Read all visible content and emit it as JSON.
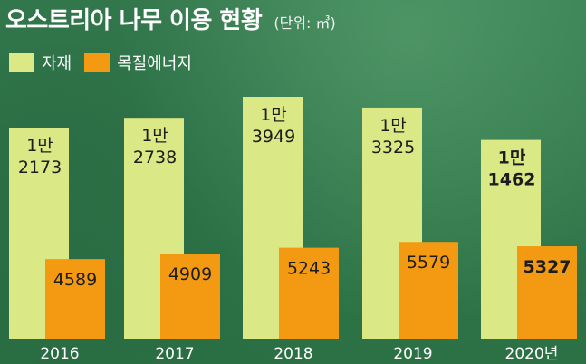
{
  "header": {
    "title": "오스트리아 나무 이용 현황",
    "subtitle": "(단위: ㎥)"
  },
  "legend": {
    "items": [
      {
        "label": "자재",
        "color": "#dbe886"
      },
      {
        "label": "목질에너지",
        "color": "#f39a12"
      }
    ]
  },
  "chart_data": {
    "type": "bar",
    "title": "오스트리아 나무 이용 현황",
    "unit": "(단위: ㎥)",
    "categories": [
      "2016",
      "2017",
      "2018",
      "2019",
      "2020년"
    ],
    "series": [
      {
        "name": "자재",
        "color": "#dbe886",
        "values": [
          12173,
          12738,
          13949,
          13325,
          11462
        ],
        "label_lines": [
          [
            "1만",
            "2173"
          ],
          [
            "1만",
            "2738"
          ],
          [
            "1만",
            "3949"
          ],
          [
            "1만",
            "3325"
          ],
          [
            "1만",
            "1462"
          ]
        ]
      },
      {
        "name": "목질에너지",
        "color": "#f39a12",
        "values": [
          4589,
          4909,
          5243,
          5579,
          5327
        ],
        "label_lines": [
          [
            "4589"
          ],
          [
            "4909"
          ],
          [
            "5243"
          ],
          [
            "5579"
          ],
          [
            "5327"
          ]
        ]
      }
    ],
    "legend_position": "top-left",
    "grid": false,
    "ylim": [
      0,
      13949
    ]
  },
  "colors": {
    "background": "#2f7a4a",
    "text": "#ffffff",
    "material": "#dbe886",
    "energy": "#f39a12"
  }
}
